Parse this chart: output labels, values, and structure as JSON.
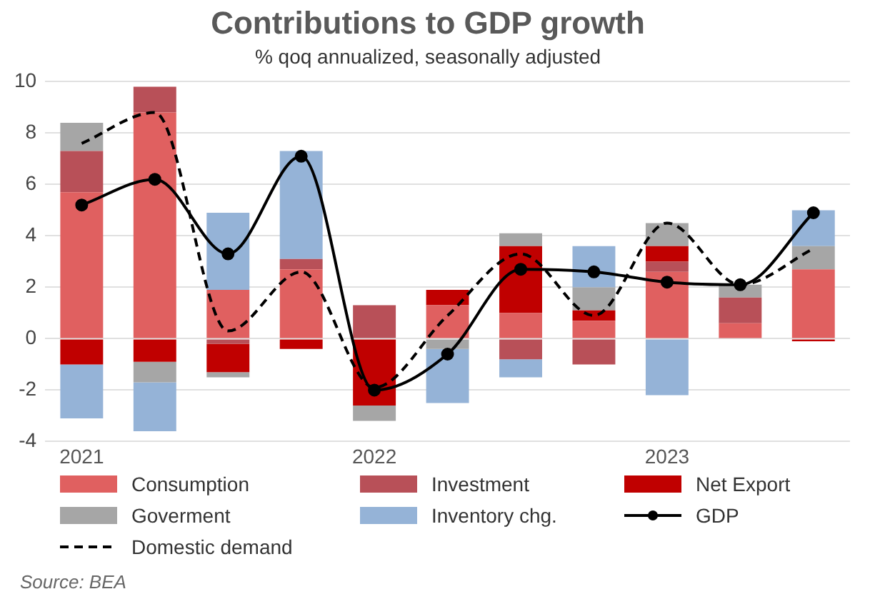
{
  "chart_data": {
    "type": "bar",
    "title": "Contributions to GDP growth",
    "subtitle": "% qoq annualized, seasonally adjusted",
    "categories": [
      "2021",
      null,
      null,
      null,
      "2022",
      null,
      null,
      null,
      "2023",
      null,
      null
    ],
    "stacked": true,
    "ylim": [
      -4,
      10
    ],
    "yticks": [
      -4,
      -2,
      0,
      2,
      4,
      6,
      8,
      10
    ],
    "grid": "y",
    "legend": "bottom",
    "annotations": [
      "Source: BEA"
    ],
    "series": [
      {
        "name": "Consumption",
        "type": "bar",
        "color": "#e06060",
        "values": [
          5.7,
          8.8,
          1.9,
          2.7,
          0,
          1.3,
          1.0,
          0.7,
          2.6,
          0.6,
          2.7
        ]
      },
      {
        "name": "Investment",
        "type": "bar",
        "color": "#b85058",
        "values": [
          1.6,
          1.0,
          -0.2,
          0.4,
          1.3,
          0,
          -0.8,
          -1.0,
          0.4,
          1.0,
          0
        ]
      },
      {
        "name": "Net Export",
        "type": "bar",
        "color": "#c00000",
        "values": [
          -1.0,
          -0.9,
          -1.1,
          -0.4,
          -2.6,
          0.6,
          2.6,
          0.4,
          0.6,
          0,
          -0.1
        ]
      },
      {
        "name": "Goverment",
        "type": "bar",
        "color": "#a6a6a6",
        "values": [
          1.1,
          -0.8,
          -0.2,
          0,
          -0.6,
          -0.4,
          0.5,
          0.9,
          0.9,
          0.5,
          0.9
        ]
      },
      {
        "name": "Inventory chg.",
        "type": "bar",
        "color": "#95b3d7",
        "values": [
          -2.1,
          -1.9,
          3.0,
          4.2,
          0,
          -2.1,
          -0.7,
          1.6,
          -2.2,
          0,
          1.4
        ]
      },
      {
        "name": "GDP",
        "type": "line",
        "color": "#000000",
        "marker": "circle",
        "line_style": "solid",
        "values": [
          5.2,
          6.2,
          3.3,
          7.1,
          -2.0,
          -0.6,
          2.7,
          2.6,
          2.2,
          2.1,
          4.9
        ]
      },
      {
        "name": "Domestic demand",
        "type": "line",
        "color": "#000000",
        "marker": "none",
        "line_style": "dashed",
        "values": [
          7.6,
          8.8,
          0.3,
          2.6,
          -1.9,
          0.9,
          3.3,
          0.9,
          4.5,
          2.1,
          3.5
        ]
      }
    ]
  }
}
